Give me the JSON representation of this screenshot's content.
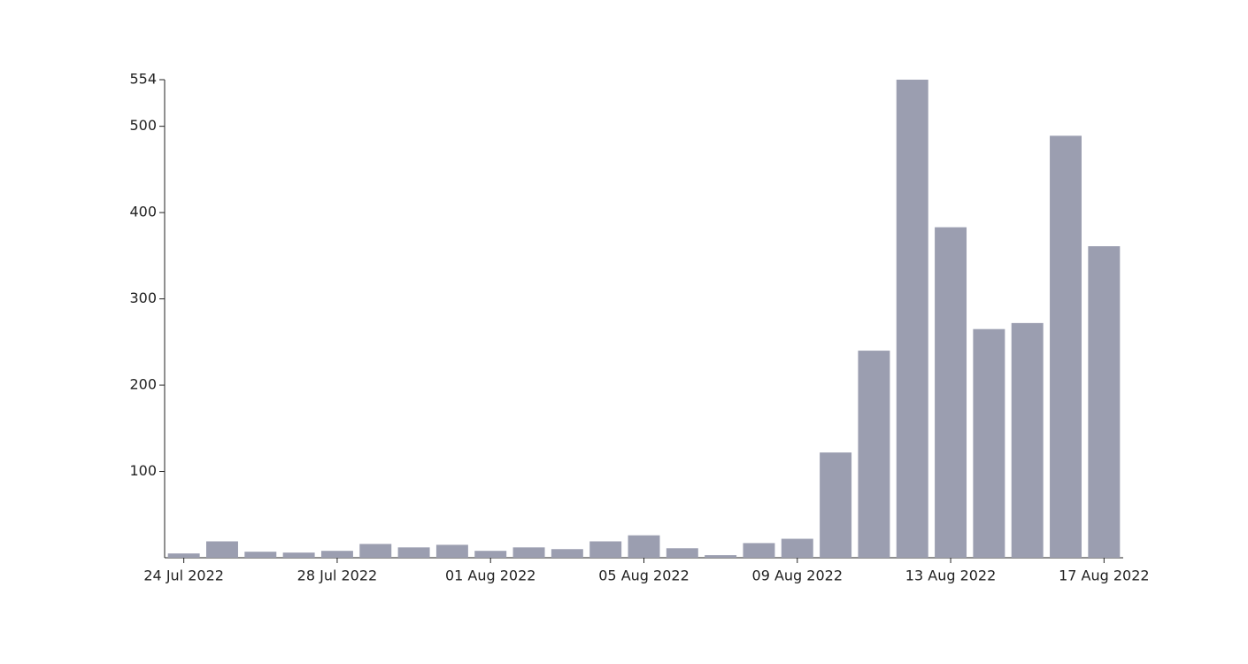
{
  "chart_data": {
    "type": "bar",
    "categories": [
      "24 Jul 2022",
      null,
      null,
      null,
      "28 Jul 2022",
      null,
      null,
      null,
      "01 Aug 2022",
      null,
      null,
      null,
      "05 Aug 2022",
      null,
      null,
      null,
      "09 Aug 2022",
      null,
      null,
      null,
      "13 Aug 2022",
      null,
      null,
      null,
      "17 Aug 2022"
    ],
    "values": [
      5,
      19,
      7,
      6,
      8,
      16,
      12,
      15,
      8,
      12,
      10,
      19,
      26,
      11,
      3,
      17,
      22,
      122,
      240,
      554,
      383,
      265,
      272,
      489,
      361
    ],
    "color": "#9b9eb0",
    "ylim": [
      0,
      554
    ],
    "yticks": [
      100,
      200,
      300,
      400,
      500,
      554
    ],
    "grid": false
  }
}
